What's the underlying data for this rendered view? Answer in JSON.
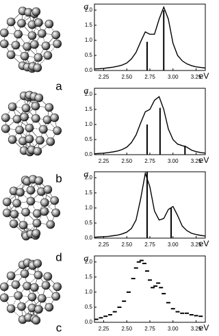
{
  "chart_data": [
    {
      "type": "line",
      "panel_label": "a",
      "y_label": "σ",
      "x_label": "eV",
      "x": [
        2.15,
        2.2,
        2.25,
        2.3,
        2.35,
        2.4,
        2.45,
        2.5,
        2.55,
        2.6,
        2.65,
        2.7,
        2.75,
        2.8,
        2.85,
        2.9,
        2.95,
        3.0,
        3.05,
        3.1,
        3.15,
        3.2,
        3.25,
        3.3,
        3.35
      ],
      "values": [
        0.05,
        0.06,
        0.07,
        0.09,
        0.11,
        0.14,
        0.18,
        0.25,
        0.38,
        0.6,
        0.95,
        1.28,
        1.2,
        1.2,
        1.7,
        2.1,
        1.7,
        0.9,
        0.5,
        0.32,
        0.22,
        0.16,
        0.12,
        0.1,
        0.08
      ],
      "sticks": {
        "x": [
          2.72,
          2.9
        ],
        "values": [
          0.95,
          2.0
        ]
      },
      "color": "#000000",
      "xlim": [
        2.15,
        3.35
      ],
      "ylim": [
        0,
        2.2
      ],
      "xticks": [
        2.25,
        {
          "value": 2.5,
          "label": "2.50"
        },
        2.75,
        {
          "value": 3.0,
          "label": "3.00"
        },
        3.25
      ],
      "yticks": [
        {
          "value": 0,
          "label": "0.0"
        },
        0.5,
        {
          "value": 1,
          "label": "1.0"
        },
        1.5,
        {
          "value": 2,
          "label": "2.0"
        }
      ]
    },
    {
      "type": "line",
      "panel_label": "b",
      "y_label": "σ",
      "x_label": "eV",
      "x": [
        2.15,
        2.2,
        2.25,
        2.3,
        2.35,
        2.4,
        2.45,
        2.5,
        2.55,
        2.6,
        2.65,
        2.7,
        2.75,
        2.8,
        2.85,
        2.9,
        2.95,
        3.0,
        3.05,
        3.1,
        3.15,
        3.2,
        3.25,
        3.3,
        3.35
      ],
      "values": [
        0.03,
        0.04,
        0.05,
        0.07,
        0.09,
        0.12,
        0.17,
        0.25,
        0.4,
        0.65,
        1.05,
        1.42,
        1.5,
        1.8,
        1.92,
        1.5,
        0.85,
        0.5,
        0.35,
        0.3,
        0.25,
        0.15,
        0.1,
        0.07,
        0.05
      ],
      "sticks": {
        "x": [
          2.72,
          2.86,
          3.13
        ],
        "values": [
          1.0,
          1.55,
          0.3
        ]
      },
      "color": "#000000",
      "xlim": [
        2.15,
        3.35
      ],
      "ylim": [
        0,
        2.2
      ],
      "xticks": [
        2.25,
        {
          "value": 2.5,
          "label": "2.50"
        },
        2.75,
        {
          "value": 3.0,
          "label": "3.00"
        },
        3.25
      ],
      "yticks": [
        {
          "value": 0,
          "label": "0.0"
        },
        0.5,
        {
          "value": 1,
          "label": "1.0"
        },
        1.5,
        {
          "value": 2,
          "label": "2.0"
        }
      ]
    },
    {
      "type": "line",
      "panel_label": "d",
      "y_label": "σ",
      "x_label": "eV",
      "x": [
        2.15,
        2.2,
        2.25,
        2.3,
        2.35,
        2.4,
        2.45,
        2.5,
        2.55,
        2.6,
        2.65,
        2.7,
        2.75,
        2.8,
        2.85,
        2.9,
        2.95,
        3.0,
        3.05,
        3.1,
        3.15,
        3.2,
        3.25,
        3.3,
        3.35
      ],
      "values": [
        0.03,
        0.04,
        0.05,
        0.06,
        0.08,
        0.1,
        0.14,
        0.2,
        0.32,
        0.6,
        1.3,
        2.15,
        1.7,
        0.9,
        0.6,
        0.65,
        0.95,
        1.05,
        0.75,
        0.4,
        0.25,
        0.16,
        0.12,
        0.09,
        0.07
      ],
      "sticks": {
        "x": [
          2.72,
          2.98
        ],
        "values": [
          2.2,
          1.0
        ]
      },
      "color": "#000000",
      "xlim": [
        2.15,
        3.35
      ],
      "ylim": [
        0,
        2.2
      ],
      "xticks": [
        2.25,
        {
          "value": 2.5,
          "label": "2.50"
        },
        2.75,
        {
          "value": 3.0,
          "label": "3.00"
        },
        3.25
      ],
      "yticks": [
        {
          "value": 0,
          "label": "0.0"
        },
        0.5,
        {
          "value": 1,
          "label": "1.0"
        },
        1.5,
        {
          "value": 2,
          "label": "2.0"
        }
      ]
    },
    {
      "type": "scatter",
      "panel_label": "c",
      "y_label": "σ",
      "x_label": "eV",
      "x": [
        2.17,
        2.22,
        2.27,
        2.32,
        2.37,
        2.42,
        2.47,
        2.52,
        2.57,
        2.6,
        2.63,
        2.66,
        2.69,
        2.72,
        2.75,
        2.78,
        2.81,
        2.84,
        2.87,
        2.9,
        2.95,
        3.0,
        3.05,
        3.1,
        3.15,
        3.2,
        3.25,
        3.3
      ],
      "values": [
        0.1,
        0.15,
        0.2,
        0.25,
        0.35,
        0.5,
        0.7,
        1.0,
        1.45,
        1.8,
        2.0,
        2.05,
        1.95,
        1.7,
        1.4,
        1.15,
        1.2,
        1.3,
        1.15,
        0.95,
        0.65,
        0.45,
        0.35,
        0.3,
        0.3,
        0.25,
        0.22,
        0.2
      ],
      "color": "#000000",
      "xlim": [
        2.15,
        3.35
      ],
      "ylim": [
        0,
        2.2
      ],
      "xticks": [
        2.25,
        {
          "value": 2.5,
          "label": "2.50"
        },
        2.75,
        {
          "value": 3.0,
          "label": "3.00"
        },
        3.25
      ],
      "yticks": [
        {
          "value": 0,
          "label": "0.0"
        },
        0.5,
        {
          "value": 1,
          "label": "1.0"
        },
        1.5,
        {
          "value": 2,
          "label": "2.0"
        }
      ]
    }
  ]
}
